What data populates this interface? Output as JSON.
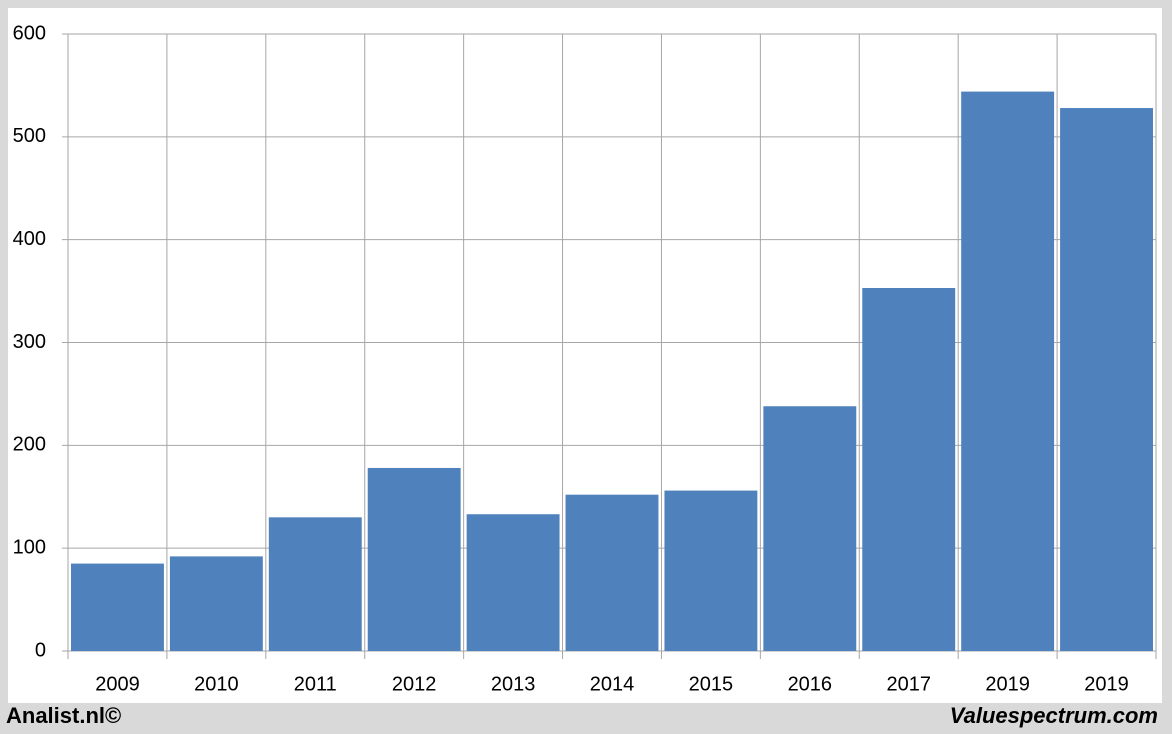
{
  "chart_data": {
    "type": "bar",
    "categories": [
      "2009",
      "2010",
      "2011",
      "2012",
      "2013",
      "2014",
      "2015",
      "2016",
      "2017",
      "2019",
      "2019"
    ],
    "values": [
      85,
      92,
      130,
      178,
      133,
      152,
      156,
      238,
      353,
      544,
      528
    ],
    "color": "#4f81bd",
    "ylim": [
      0,
      600
    ],
    "yticks": [
      0,
      100,
      200,
      300,
      400,
      500,
      600
    ],
    "grid": true,
    "source_left": "Analist.nl©",
    "source_right": "Valuespectrum.com"
  }
}
